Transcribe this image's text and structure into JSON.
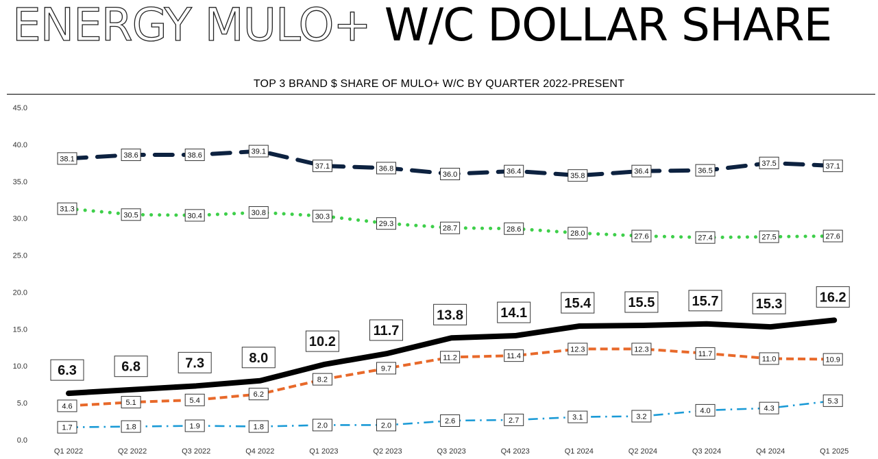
{
  "title": {
    "outline_text": "ENERGY MULO+",
    "solid_text": "W/C DOLLAR SHARE"
  },
  "chart_data": {
    "type": "line",
    "title": "TOP 3 BRAND $ SHARE OF MULO+ W/C BY QUARTER 2022-PRESENT",
    "xlabel": "",
    "ylabel": "",
    "ylim": [
      0,
      45
    ],
    "yticks": [
      "0.0",
      "5.0",
      "10.0",
      "15.0",
      "20.0",
      "25.0",
      "30.0",
      "35.0",
      "40.0",
      "45.0"
    ],
    "grid": false,
    "legend": "none",
    "categories": [
      "Q1 2022",
      "Q2 2022",
      "Q3 2022",
      "Q4 2022",
      "Q1 2023",
      "Q2 2023",
      "Q3 2023",
      "Q4 2023",
      "Q1 2024",
      "Q2 2024",
      "Q3 2024",
      "Q4 2024",
      "Q1 2025"
    ],
    "series": [
      {
        "values": [
          38.1,
          38.6,
          38.6,
          39.1,
          37.1,
          36.8,
          36.0,
          36.4,
          35.8,
          36.4,
          36.5,
          37.5,
          37.1
        ],
        "color": "#0d2240",
        "style": "long-dash"
      },
      {
        "values": [
          31.3,
          30.5,
          30.4,
          30.8,
          30.3,
          29.3,
          28.7,
          28.6,
          28.0,
          27.6,
          27.4,
          27.5,
          27.6
        ],
        "color": "#3ecf4a",
        "style": "dotted"
      },
      {
        "values": [
          6.3,
          6.8,
          7.3,
          8.0,
          10.2,
          11.7,
          13.8,
          14.1,
          15.4,
          15.5,
          15.7,
          15.3,
          16.2
        ],
        "color": "#000000",
        "style": "solid-bold"
      },
      {
        "values": [
          4.6,
          5.1,
          5.4,
          6.2,
          8.2,
          9.7,
          11.2,
          11.4,
          12.3,
          12.3,
          11.7,
          11.0,
          10.9
        ],
        "color": "#e8692a",
        "style": "dashed"
      },
      {
        "values": [
          1.7,
          1.8,
          1.9,
          1.8,
          2.0,
          2.0,
          2.6,
          2.7,
          3.1,
          3.2,
          4.0,
          4.3,
          5.3
        ],
        "color": "#1a9ad6",
        "style": "dash-dot"
      }
    ]
  }
}
